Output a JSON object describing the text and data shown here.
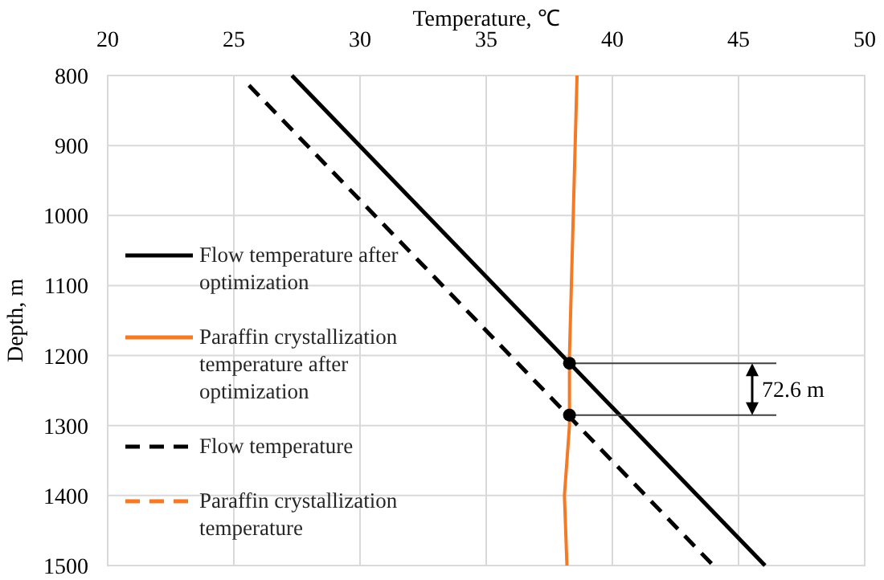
{
  "chart_data": {
    "type": "line",
    "xlabel": "Temperature, ℃",
    "ylabel": "Depth, m",
    "xlim": [
      20,
      50
    ],
    "xticks": [
      20,
      25,
      30,
      35,
      40,
      45,
      50
    ],
    "ylim": [
      1500,
      800
    ],
    "yticks": [
      800,
      900,
      1000,
      1100,
      1200,
      1300,
      1400,
      1500
    ],
    "grid": true,
    "legend": "left",
    "annotations": [
      {
        "text": "72.6 m",
        "x": 38.3,
        "y": 1211
      }
    ],
    "series": [
      {
        "name": "Flow temperature after optimization",
        "color": "#000000",
        "line_style": "solid",
        "x": [
          27.3,
          46.05
        ],
        "values": [
          800,
          1500
        ]
      },
      {
        "name": "Paraffin crystallization temperature after optimization",
        "color": "#f47a25",
        "line_style": "solid",
        "x": [
          38.6,
          38.45,
          38.3,
          38.3,
          38.1,
          38.2
        ],
        "values": [
          800,
          1000,
          1200,
          1300,
          1400,
          1500
        ]
      },
      {
        "name": "Flow temperature",
        "color": "#000000",
        "line_style": "dashed",
        "x": [
          25.6,
          44.0
        ],
        "values": [
          814,
          1500
        ]
      },
      {
        "name": "Paraffin crystallization temperature",
        "color": "#f47a25",
        "line_style": "dashed",
        "x": [
          null
        ],
        "values": [
          null
        ]
      },
      {
        "type": "scatter",
        "color": "#000000",
        "marker": "circle",
        "x": [
          38.3,
          38.3
        ],
        "values": [
          1211,
          1285
        ]
      }
    ]
  }
}
